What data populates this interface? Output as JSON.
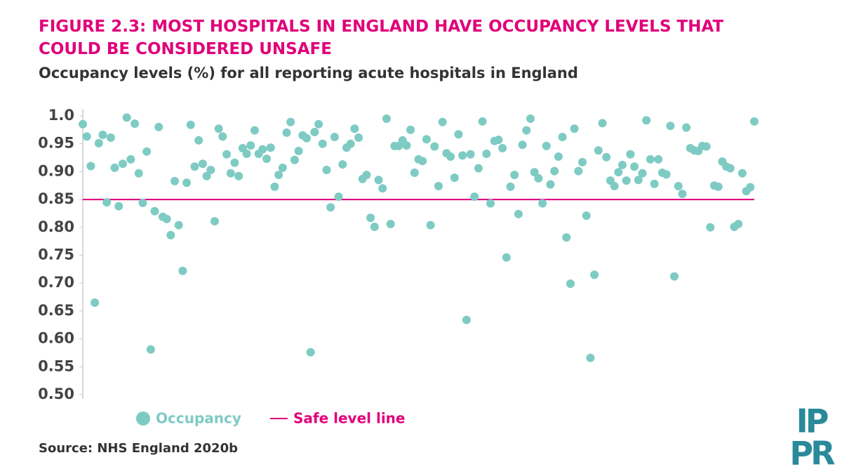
{
  "chart_data": {
    "type": "scatter",
    "title": "FIGURE 2.3: MOST HOSPITALS IN ENGLAND HAVE OCCUPANCY LEVELS THAT COULD BE CONSIDERED UNSAFE",
    "subtitle": "Occupancy levels (%) for all reporting acute hospitals in England",
    "source": "Source: NHS England 2020b",
    "logo": [
      "IP",
      "PR"
    ],
    "ylim": [
      0.5,
      1.0
    ],
    "yticks": [
      {
        "value": 1.0,
        "label": "1.0"
      },
      0.95,
      {
        "value": 0.9,
        "label": "0.90"
      },
      0.85,
      {
        "value": 0.8,
        "label": "0.80"
      },
      0.75,
      {
        "value": 0.7,
        "label": "0.70"
      },
      0.65,
      {
        "value": 0.6,
        "label": "0.60"
      },
      0.55,
      {
        "value": 0.5,
        "label": "0.50"
      }
    ],
    "series": [
      {
        "name": "Occupancy",
        "color": "#7ecbc4",
        "values": [
          0.985,
          0.963,
          0.91,
          0.665,
          0.951,
          0.966,
          0.845,
          0.961,
          0.907,
          0.838,
          0.914,
          0.997,
          0.922,
          0.986,
          0.897,
          0.844,
          0.936,
          0.581,
          0.829,
          0.98,
          0.819,
          0.815,
          0.786,
          0.883,
          0.804,
          0.722,
          0.88,
          0.984,
          0.909,
          0.956,
          0.914,
          0.892,
          0.903,
          0.811,
          0.977,
          0.963,
          0.931,
          0.897,
          0.916,
          0.892,
          0.942,
          0.932,
          0.947,
          0.974,
          0.932,
          0.94,
          0.923,
          0.943,
          0.873,
          0.894,
          0.907,
          0.97,
          0.989,
          0.921,
          0.937,
          0.965,
          0.96,
          0.576,
          0.971,
          0.985,
          0.95,
          0.903,
          0.836,
          0.962,
          0.855,
          0.913,
          0.943,
          0.95,
          0.977,
          0.961,
          0.887,
          0.894,
          0.817,
          0.801,
          0.885,
          0.87,
          0.995,
          0.806,
          0.946,
          0.946,
          0.956,
          0.947,
          0.975,
          0.898,
          0.922,
          0.919,
          0.958,
          0.804,
          0.945,
          0.874,
          0.989,
          0.933,
          0.927,
          0.889,
          0.967,
          0.929,
          0.634,
          0.931,
          0.855,
          0.906,
          0.99,
          0.932,
          0.843,
          0.955,
          0.957,
          0.942,
          0.746,
          0.873,
          0.894,
          0.824,
          0.948,
          0.974,
          0.995,
          0.899,
          0.888,
          0.843,
          0.946,
          0.877,
          0.901,
          0.927,
          0.962,
          0.782,
          0.699,
          0.977,
          0.901,
          0.917,
          0.821,
          0.566,
          0.715,
          0.938,
          0.987,
          0.926,
          0.884,
          0.874,
          0.899,
          0.912,
          0.884,
          0.931,
          0.909,
          0.885,
          0.897,
          0.992,
          0.922,
          0.878,
          0.922,
          0.898,
          0.895,
          0.982,
          0.712,
          0.874,
          0.86,
          0.979,
          0.942,
          0.938,
          0.937,
          0.946,
          0.945,
          0.8,
          0.875,
          0.873,
          0.918,
          0.909,
          0.906,
          0.801,
          0.806,
          0.897,
          0.865,
          0.872,
          0.99
        ]
      }
    ],
    "reference_line": {
      "name": "Safe level line",
      "value": 0.85,
      "color": "#e0007a"
    }
  }
}
